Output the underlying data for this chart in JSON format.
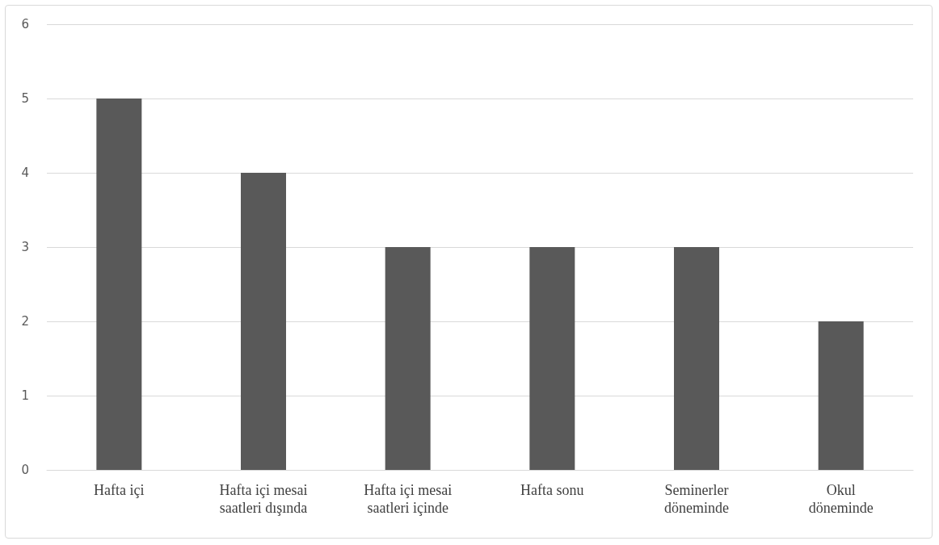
{
  "chart_data": {
    "type": "bar",
    "categories": [
      "Hafta içi",
      "Hafta içi mesai\nsaatleri dışında",
      "Hafta içi mesai\nsaatleri içinde",
      "Hafta sonu",
      "Seminerler\ndöneminde",
      "Okul\ndöneminde"
    ],
    "values": [
      5,
      4,
      3,
      3,
      3,
      2
    ],
    "color": "#595959",
    "ylim": [
      0,
      6
    ],
    "yticks": [
      0,
      1,
      2,
      3,
      4,
      5,
      6
    ],
    "grid": "y"
  }
}
